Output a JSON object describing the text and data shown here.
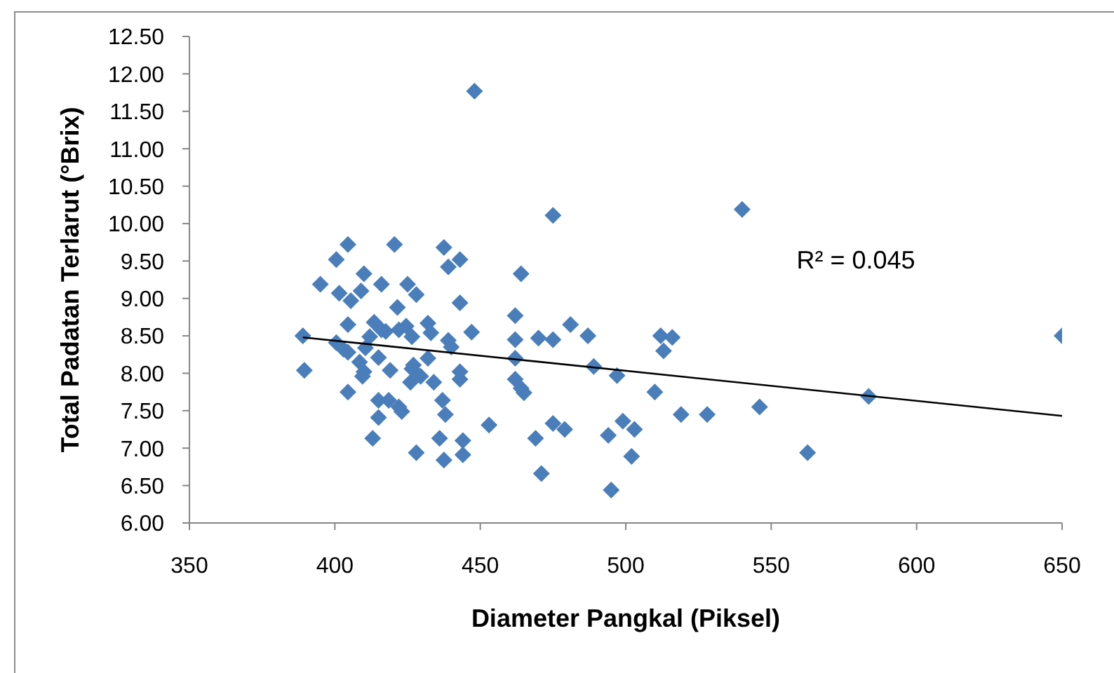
{
  "chart_data": {
    "type": "scatter",
    "xlabel": "Diameter Pangkal (Piksel)",
    "ylabel": "Total Padatan Terlarut (°Brix)",
    "marker": "diamond",
    "xlim": [
      350,
      650
    ],
    "xticks": [
      350,
      400,
      450,
      500,
      550,
      600,
      650
    ],
    "ylim": [
      6,
      12.5
    ],
    "yticks": [
      {
        "value": 6,
        "label": "6.00"
      },
      {
        "value": 6.5,
        "label": "6.50"
      },
      {
        "value": 7,
        "label": "7.00"
      },
      {
        "value": 7.5,
        "label": "7.50"
      },
      {
        "value": 8,
        "label": "8.00"
      },
      {
        "value": 8.5,
        "label": "8.50"
      },
      {
        "value": 9,
        "label": "9.00"
      },
      {
        "value": 9.5,
        "label": "9.50"
      },
      {
        "value": 10,
        "label": "10.00"
      },
      {
        "value": 10.5,
        "label": "10.50"
      },
      {
        "value": 11,
        "label": "11.00"
      },
      {
        "value": 11.5,
        "label": "11.50"
      },
      {
        "value": 12,
        "label": "12.00"
      },
      {
        "value": 12.5,
        "label": "12.50"
      }
    ],
    "annotations": [
      "R² = 0.045"
    ],
    "series": [
      {
        "color": "#4a7ebb",
        "x": [
          448,
          475,
          540,
          650,
          583.5,
          562.5,
          546,
          528,
          519,
          510,
          512,
          516,
          513,
          502,
          503,
          499,
          494,
          495,
          497,
          489,
          487,
          481,
          475,
          470,
          479,
          475,
          469,
          471,
          464,
          462,
          462,
          462,
          462,
          464,
          465,
          453,
          447,
          443,
          443,
          439,
          437.5,
          443,
          443,
          444,
          444,
          437.5,
          436,
          438,
          437,
          434,
          439,
          440,
          432,
          433,
          428,
          425,
          420.5,
          404.5,
          400.5,
          410,
          416,
          395,
          401.5,
          405.5,
          409,
          389,
          389.5,
          404.5,
          400.5,
          404.5,
          413,
          428,
          415,
          415,
          422,
          418.5,
          419,
          422,
          421.5,
          424.5,
          413.5,
          403,
          412,
          417.5,
          426.5,
          404.5,
          410.5,
          408.5,
          415,
          409.5,
          426.5,
          429.5,
          423,
          427,
          426,
          432,
          410,
          416
        ],
        "values": [
          11.77,
          10.11,
          10.19,
          8.5,
          7.69,
          6.94,
          7.55,
          7.45,
          7.45,
          7.75,
          8.5,
          8.48,
          8.3,
          6.89,
          7.25,
          7.36,
          7.17,
          6.44,
          7.97,
          8.09,
          8.5,
          8.65,
          8.45,
          8.47,
          7.25,
          7.33,
          7.13,
          6.66,
          9.33,
          8.77,
          8.45,
          8.2,
          7.92,
          7.8,
          7.74,
          7.31,
          8.55,
          8.94,
          9.52,
          9.42,
          9.68,
          7.92,
          8.02,
          6.91,
          7.1,
          6.84,
          7.13,
          7.45,
          7.64,
          7.88,
          8.44,
          8.35,
          8.67,
          8.54,
          9.05,
          9.19,
          9.72,
          9.72,
          9.52,
          9.33,
          9.19,
          9.19,
          9.07,
          8.97,
          9.1,
          8.5,
          8.04,
          8.65,
          8.41,
          7.75,
          7.13,
          6.94,
          7.41,
          7.64,
          7.55,
          7.64,
          8.04,
          8.58,
          8.88,
          8.63,
          8.68,
          8.32,
          8.49,
          8.56,
          8.49,
          8.28,
          8.34,
          8.15,
          8.21,
          7.96,
          8.06,
          7.96,
          7.49,
          8.11,
          7.88,
          8.2,
          8.02,
          8.58
        ]
      },
      {
        "type": "line",
        "color": "#000000",
        "marker": "none",
        "x": [
          389,
          650
        ],
        "values": [
          8.48,
          7.43
        ]
      }
    ]
  }
}
